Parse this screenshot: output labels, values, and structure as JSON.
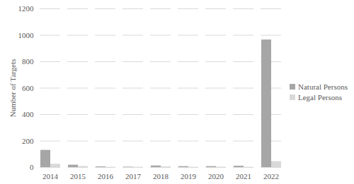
{
  "chart_data": {
    "type": "bar",
    "y_label": "Number of Targets",
    "categories": [
      "2014",
      "2015",
      "2016",
      "2017",
      "2018",
      "2019",
      "2020",
      "2021",
      "2022"
    ],
    "series": [
      {
        "name": "Natural Persons",
        "color": "#a6a6a6",
        "values": [
          130,
          18,
          5,
          3,
          12,
          7,
          7,
          10,
          965
        ]
      },
      {
        "name": "Legal Persons",
        "color": "#d9d9d9",
        "values": [
          25,
          8,
          2,
          2,
          5,
          2,
          3,
          2,
          45
        ]
      }
    ],
    "ylim": [
      0,
      1200
    ],
    "yticks": [
      0,
      200,
      400,
      600,
      800,
      1000,
      1200
    ],
    "grid": true,
    "legend": "right"
  }
}
